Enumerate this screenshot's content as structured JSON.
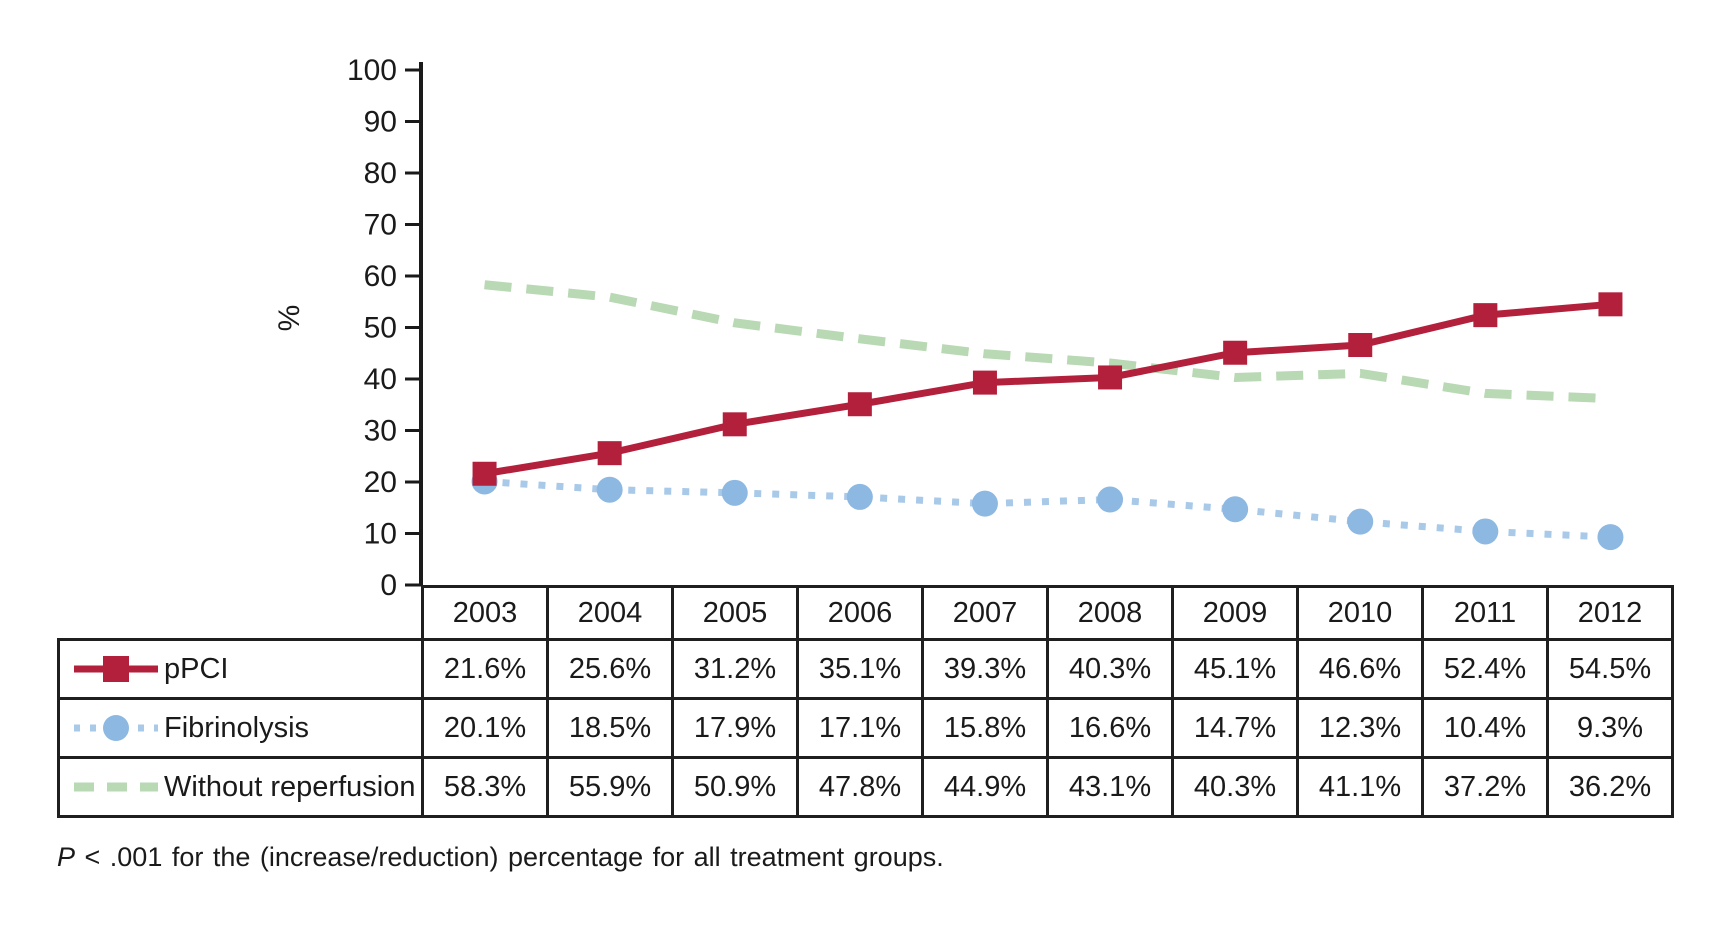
{
  "chart_data": {
    "type": "line",
    "title": "",
    "xlabel": "",
    "ylabel": "%",
    "ylim": [
      0,
      100
    ],
    "yticks": [
      0,
      10,
      20,
      30,
      40,
      50,
      60,
      70,
      80,
      90,
      100
    ],
    "grid": false,
    "legend_position": "table-left-column",
    "categories": [
      "2003",
      "2004",
      "2005",
      "2006",
      "2007",
      "2008",
      "2009",
      "2010",
      "2011",
      "2012"
    ],
    "series": [
      {
        "name": "pPCI",
        "color": "#b2203c",
        "line_style": "solid",
        "marker": "square",
        "values": [
          21.6,
          25.6,
          31.2,
          35.1,
          39.3,
          40.3,
          45.1,
          46.6,
          52.4,
          54.5
        ]
      },
      {
        "name": "Fibrinolysis",
        "color": "#a9c9e9",
        "marker_color": "#8cb8e2",
        "line_style": "dotted",
        "marker": "circle",
        "values": [
          20.1,
          18.5,
          17.9,
          17.1,
          15.8,
          16.6,
          14.7,
          12.3,
          10.4,
          9.3
        ]
      },
      {
        "name": "Without reperfusion",
        "color": "#b9d8b4",
        "line_style": "dashed",
        "marker": "none",
        "values": [
          58.3,
          55.9,
          50.9,
          47.8,
          44.9,
          43.1,
          40.3,
          41.1,
          37.2,
          36.2
        ]
      }
    ]
  },
  "table": {
    "corner_blank": "",
    "year_headers": [
      "2003",
      "2004",
      "2005",
      "2006",
      "2007",
      "2008",
      "2009",
      "2010",
      "2011",
      "2012"
    ],
    "rows": [
      {
        "label": "pPCI",
        "values": [
          "21.6%",
          "25.6%",
          "31.2%",
          "35.1%",
          "39.3%",
          "40.3%",
          "45.1%",
          "46.6%",
          "52.4%",
          "54.5%"
        ]
      },
      {
        "label": "Fibrinolysis",
        "values": [
          "20.1%",
          "18.5%",
          "17.9%",
          "17.1%",
          "15.8%",
          "16.6%",
          "14.7%",
          "12.3%",
          "10.4%",
          "9.3%"
        ]
      },
      {
        "label": "Without reperfusion",
        "values": [
          "58.3%",
          "55.9%",
          "50.9%",
          "47.8%",
          "44.9%",
          "43.1%",
          "40.3%",
          "41.1%",
          "37.2%",
          "36.2%"
        ]
      }
    ]
  },
  "footnote": {
    "p_symbol": "P",
    "rest": " < .001 for the (increase/reduction) percentage for all treatment groups."
  }
}
